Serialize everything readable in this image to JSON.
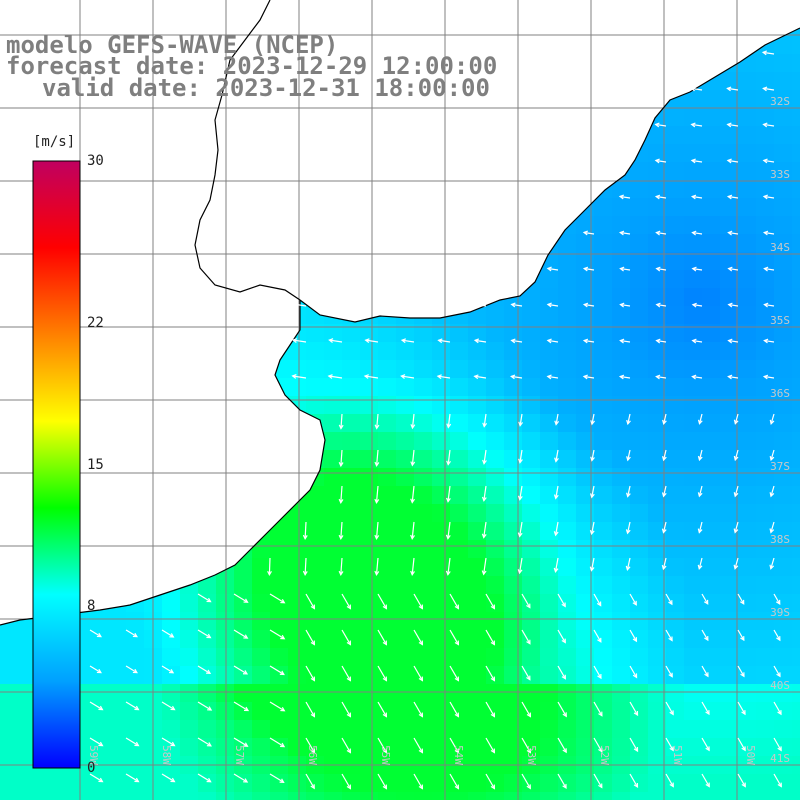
{
  "title": {
    "line1": "modelo GEFS-WAVE (NCEP)",
    "line2": "forecast date: 2023-12-29 12:00:00",
    "line3": "valid date: 2023-12-31 18:00:00"
  },
  "colorbar": {
    "unit": "[m/s]",
    "ticks": [
      {
        "label": "30",
        "value": 30
      },
      {
        "label": "22",
        "value": 22
      },
      {
        "label": "15",
        "value": 15
      },
      {
        "label": "8",
        "value": 8
      },
      {
        "label": "0",
        "value": 0
      }
    ],
    "range": [
      0,
      30
    ],
    "colors": [
      "#0000ff",
      "#00a0ff",
      "#00ffff",
      "#00ff00",
      "#ffff00",
      "#ff8000",
      "#ff0000",
      "#c00060"
    ]
  },
  "map": {
    "field": "wind speed with direction vectors",
    "lat_labels": [
      "32S",
      "33S",
      "34S",
      "35S",
      "36S",
      "37S",
      "38S",
      "39S",
      "40S",
      "41S"
    ],
    "lon_labels": [
      "59W",
      "58W",
      "57W",
      "56W",
      "55W",
      "54W",
      "53W",
      "52W",
      "51W",
      "50W"
    ],
    "land_color": "#ffffff",
    "gridline_color": "#808080",
    "coastline_color": "#000000"
  }
}
